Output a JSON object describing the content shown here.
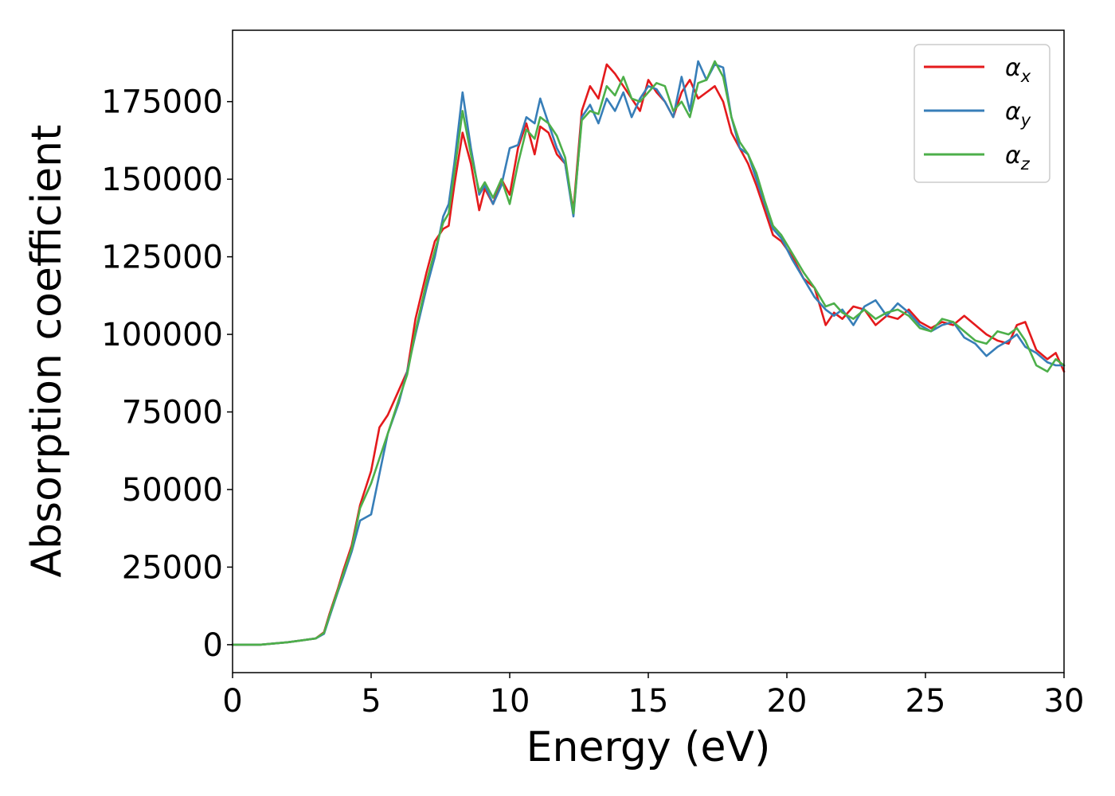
{
  "chart_data": {
    "type": "line",
    "xlabel": "Energy (eV)",
    "ylabel": "Absorption coefficient",
    "xlim": [
      0,
      30
    ],
    "ylim": [
      -9000,
      198000
    ],
    "xticks": [
      0,
      5,
      10,
      15,
      20,
      25,
      30
    ],
    "yticks": [
      0,
      25000,
      50000,
      75000,
      100000,
      125000,
      150000,
      175000
    ],
    "grid": false,
    "legend_position": "top-right",
    "series": [
      {
        "name": "αx",
        "symbol": "α",
        "subscript": "x",
        "color": "#e41a1c",
        "x": [
          0,
          1,
          2,
          3,
          3.3,
          3.5,
          3.8,
          4.0,
          4.3,
          4.6,
          5.0,
          5.3,
          5.6,
          6.0,
          6.3,
          6.6,
          7.0,
          7.3,
          7.6,
          7.8,
          8.0,
          8.3,
          8.6,
          8.9,
          9.1,
          9.4,
          9.7,
          10.0,
          10.3,
          10.6,
          10.9,
          11.1,
          11.4,
          11.7,
          12.0,
          12.3,
          12.6,
          12.9,
          13.2,
          13.5,
          13.8,
          14.1,
          14.4,
          14.7,
          15.0,
          15.3,
          15.6,
          15.9,
          16.2,
          16.5,
          16.8,
          17.1,
          17.4,
          17.7,
          18.0,
          18.3,
          18.6,
          18.9,
          19.2,
          19.5,
          19.8,
          20.2,
          20.6,
          21.0,
          21.4,
          21.7,
          22.0,
          22.4,
          22.8,
          23.2,
          23.6,
          24.0,
          24.4,
          24.8,
          25.2,
          25.6,
          26.0,
          26.4,
          26.8,
          27.2,
          27.6,
          28.0,
          28.3,
          28.6,
          29.0,
          29.4,
          29.7,
          30.0
        ],
        "y": [
          0,
          0,
          800,
          2000,
          4000,
          10000,
          18000,
          24000,
          32000,
          45000,
          56000,
          70000,
          74000,
          82000,
          88000,
          105000,
          120000,
          130000,
          134000,
          135000,
          148000,
          165000,
          155000,
          140000,
          147000,
          142000,
          150000,
          145000,
          160000,
          168000,
          158000,
          167000,
          165000,
          158000,
          155000,
          140000,
          172000,
          180000,
          176000,
          187000,
          184000,
          180000,
          176000,
          172000,
          182000,
          178000,
          175000,
          170000,
          178000,
          182000,
          176000,
          178000,
          180000,
          175000,
          165000,
          160000,
          155000,
          148000,
          140000,
          132000,
          130000,
          125000,
          118000,
          115000,
          103000,
          107000,
          105000,
          109000,
          108000,
          103000,
          106000,
          105000,
          108000,
          104000,
          102000,
          104000,
          103000,
          106000,
          103000,
          100000,
          98000,
          97000,
          103000,
          104000,
          95000,
          92000,
          94000,
          88000
        ]
      },
      {
        "name": "αy",
        "symbol": "α",
        "subscript": "y",
        "color": "#377eb8",
        "x": [
          0,
          1,
          2,
          3,
          3.3,
          3.5,
          3.8,
          4.0,
          4.3,
          4.6,
          5.0,
          5.3,
          5.6,
          6.0,
          6.3,
          6.6,
          7.0,
          7.3,
          7.6,
          7.8,
          8.0,
          8.3,
          8.6,
          8.9,
          9.1,
          9.4,
          9.7,
          10.0,
          10.3,
          10.6,
          10.9,
          11.1,
          11.4,
          11.7,
          12.0,
          12.3,
          12.6,
          12.9,
          13.2,
          13.5,
          13.8,
          14.1,
          14.4,
          14.7,
          15.0,
          15.3,
          15.6,
          15.9,
          16.2,
          16.5,
          16.8,
          17.1,
          17.4,
          17.7,
          18.0,
          18.3,
          18.6,
          18.9,
          19.2,
          19.5,
          19.8,
          20.2,
          20.6,
          21.0,
          21.4,
          21.7,
          22.0,
          22.4,
          22.8,
          23.2,
          23.6,
          24.0,
          24.4,
          24.8,
          25.2,
          25.6,
          26.0,
          26.4,
          26.8,
          27.2,
          27.6,
          28.0,
          28.3,
          28.6,
          29.0,
          29.4,
          29.7,
          30.0
        ],
        "y": [
          0,
          0,
          800,
          2000,
          3500,
          9000,
          17000,
          22000,
          30000,
          40000,
          42000,
          55000,
          68000,
          78000,
          88000,
          100000,
          115000,
          125000,
          138000,
          142000,
          155000,
          178000,
          160000,
          145000,
          148000,
          142000,
          148000,
          160000,
          161000,
          170000,
          168000,
          176000,
          168000,
          160000,
          155000,
          138000,
          170000,
          174000,
          168000,
          176000,
          172000,
          178000,
          170000,
          176000,
          180000,
          179000,
          175000,
          170000,
          183000,
          172000,
          188000,
          182000,
          187000,
          186000,
          170000,
          160000,
          158000,
          150000,
          142000,
          134000,
          131000,
          124000,
          118000,
          112000,
          108000,
          106000,
          108000,
          103000,
          109000,
          111000,
          106000,
          110000,
          107000,
          103000,
          101000,
          103000,
          104000,
          99000,
          97000,
          93000,
          96000,
          98000,
          100000,
          96000,
          94000,
          91000,
          90000,
          90000
        ]
      },
      {
        "name": "αz",
        "symbol": "α",
        "subscript": "z",
        "color": "#4daf4a",
        "x": [
          0,
          1,
          2,
          3,
          3.3,
          3.5,
          3.8,
          4.0,
          4.3,
          4.6,
          5.0,
          5.3,
          5.6,
          6.0,
          6.3,
          6.6,
          7.0,
          7.3,
          7.6,
          7.8,
          8.0,
          8.3,
          8.6,
          8.9,
          9.1,
          9.4,
          9.7,
          10.0,
          10.3,
          10.6,
          10.9,
          11.1,
          11.4,
          11.7,
          12.0,
          12.3,
          12.6,
          12.9,
          13.2,
          13.5,
          13.8,
          14.1,
          14.4,
          14.7,
          15.0,
          15.3,
          15.6,
          15.9,
          16.2,
          16.5,
          16.8,
          17.1,
          17.4,
          17.7,
          18.0,
          18.3,
          18.6,
          18.9,
          19.2,
          19.5,
          19.8,
          20.2,
          20.6,
          21.0,
          21.4,
          21.7,
          22.0,
          22.4,
          22.8,
          23.2,
          23.6,
          24.0,
          24.4,
          24.8,
          25.2,
          25.6,
          26.0,
          26.4,
          26.8,
          27.2,
          27.6,
          28.0,
          28.3,
          28.6,
          29.0,
          29.4,
          29.7,
          30.0
        ],
        "y": [
          0,
          0,
          800,
          2000,
          3800,
          9500,
          17500,
          23000,
          31000,
          44000,
          52000,
          60000,
          68000,
          79000,
          87000,
          101000,
          117000,
          127000,
          136000,
          139000,
          152000,
          172000,
          158000,
          146000,
          149000,
          144000,
          150000,
          142000,
          155000,
          166000,
          163000,
          170000,
          168000,
          164000,
          157000,
          139000,
          169000,
          172000,
          171000,
          180000,
          177000,
          183000,
          176000,
          175000,
          178000,
          181000,
          180000,
          172000,
          175000,
          170000,
          181000,
          182000,
          188000,
          183000,
          170000,
          162000,
          158000,
          152000,
          143000,
          135000,
          132000,
          126000,
          120000,
          115000,
          109000,
          110000,
          107000,
          105000,
          108000,
          105000,
          107000,
          108000,
          106000,
          102000,
          101000,
          105000,
          104000,
          101000,
          98000,
          97000,
          101000,
          100000,
          102000,
          98000,
          90000,
          88000,
          92000,
          90000
        ]
      }
    ]
  }
}
